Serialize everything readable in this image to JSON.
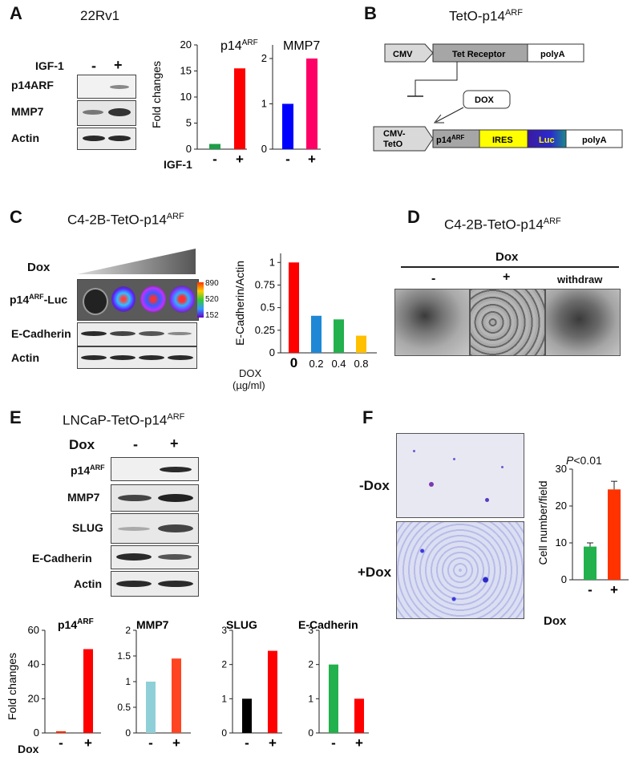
{
  "panels": {
    "A": {
      "letter": "A",
      "cell_line": "22Rv1",
      "treatment_label": "IGF-1",
      "lanes": [
        "-",
        "+"
      ],
      "blot_rows": [
        "p14ARF",
        "MMP7",
        "Actin"
      ],
      "chart_xlabel": "IGF-1"
    },
    "B": {
      "letter": "B",
      "title": "TetO-p14ARF",
      "cmv": "CMV",
      "tet_receptor": "Tet Receptor",
      "polyA": "polyA",
      "dox": "DOX",
      "cmv_teto_1": "CMV-",
      "cmv_teto_2": "TetO",
      "p14": "p14ARF",
      "ires": "IRES",
      "luc": "Luc",
      "polyA2": "polyA"
    },
    "C": {
      "letter": "C",
      "title": "C4-2B-TetO-p14ARF",
      "dox_label": "Dox",
      "luc_label": "p14ARF-Luc",
      "scale_ticks": [
        "890",
        "520",
        "152"
      ],
      "blot_rows": [
        "E-Cadherin",
        "Actin"
      ],
      "x_axis_label_1": "DOX",
      "x_axis_label_2": "(µg/ml)"
    },
    "D": {
      "letter": "D",
      "title": "C4-2B-TetO-p14ARF",
      "dox_label": "Dox",
      "conditions": [
        "-",
        "+",
        "withdraw"
      ]
    },
    "E": {
      "letter": "E",
      "title": "LNCaP-TetO-p14ARF",
      "dox_label": "Dox",
      "lanes": [
        "-",
        "+"
      ],
      "blot_rows": [
        "p14ARF",
        "MMP7",
        "SLUG",
        "E-Cadherin",
        "Actin"
      ],
      "bottom_dox": "Dox"
    },
    "F": {
      "letter": "F",
      "rows": [
        "-Dox",
        "+Dox"
      ],
      "pvalue_p": "P",
      "pvalue_rest": "<0.01",
      "dox_label": "Dox"
    }
  },
  "chart_data": [
    {
      "id": "A-p14",
      "type": "bar",
      "title": "p14ARF",
      "categories": [
        "-",
        "+"
      ],
      "values": [
        1,
        15.5
      ],
      "colors": [
        "#1e9e48",
        "#ff0000"
      ],
      "ylabel": "Fold changes",
      "ylim": [
        0,
        20
      ],
      "yticks": [
        0,
        5,
        10,
        15,
        20
      ]
    },
    {
      "id": "A-mmp7",
      "type": "bar",
      "title": "MMP7",
      "categories": [
        "-",
        "+"
      ],
      "values": [
        1,
        2
      ],
      "colors": [
        "#0000ff",
        "#ff0066"
      ],
      "ylim": [
        0,
        2.3
      ],
      "yticks": [
        0,
        1,
        2
      ]
    },
    {
      "id": "C-ecad",
      "type": "bar",
      "categories": [
        "0",
        "0.2",
        "0.4",
        "0.8"
      ],
      "values": [
        1,
        0.41,
        0.37,
        0.19
      ],
      "colors": [
        "#ff0000",
        "#1e88d6",
        "#22b14c",
        "#ffc000"
      ],
      "ylabel": "E-Cadherin/Actin",
      "ylim": [
        0,
        1.1
      ],
      "yticks": [
        0,
        0.25,
        0.5,
        0.75,
        1
      ],
      "ytick_labels": [
        "0",
        "0.25",
        "0.5",
        "0.75",
        "1"
      ]
    },
    {
      "id": "E-p14",
      "type": "bar",
      "title": "p14ARF",
      "categories": [
        "-",
        "+"
      ],
      "values": [
        1,
        49
      ],
      "colors": [
        "#ff2a00",
        "#ff0000"
      ],
      "ylabel": "Fold changes",
      "ylim": [
        0,
        60
      ],
      "yticks": [
        0,
        20,
        40,
        60
      ]
    },
    {
      "id": "E-mmp7",
      "type": "bar",
      "title": "MMP7",
      "categories": [
        "-",
        "+"
      ],
      "values": [
        1,
        1.45
      ],
      "colors": [
        "#8fd0d8",
        "#ff4422"
      ],
      "ylim": [
        0,
        2
      ],
      "yticks": [
        0,
        0.5,
        1,
        1.5,
        2
      ],
      "ytick_labels": [
        "0",
        "0.5",
        "1",
        "1.5",
        "2"
      ]
    },
    {
      "id": "E-slug",
      "type": "bar",
      "title": "SLUG",
      "categories": [
        "-",
        "+"
      ],
      "values": [
        1,
        2.4
      ],
      "colors": [
        "#000000",
        "#ff0000"
      ],
      "ylim": [
        0,
        3
      ],
      "yticks": [
        0,
        1,
        2,
        3
      ]
    },
    {
      "id": "E-ecad",
      "type": "bar",
      "title": "E-Cadherin",
      "categories": [
        "-",
        "+"
      ],
      "values": [
        2,
        1
      ],
      "colors": [
        "#22b14c",
        "#ff0000"
      ],
      "ylim": [
        0,
        3
      ],
      "yticks": [
        0,
        1,
        2,
        3
      ]
    },
    {
      "id": "F-cells",
      "type": "bar",
      "categories": [
        "-",
        "+"
      ],
      "values": [
        9,
        24.5
      ],
      "errors": [
        1,
        2.2
      ],
      "colors": [
        "#22b14c",
        "#ff3300"
      ],
      "ylabel": "Cell number/field",
      "ylim": [
        0,
        30
      ],
      "yticks": [
        0,
        10,
        20,
        30
      ]
    }
  ]
}
